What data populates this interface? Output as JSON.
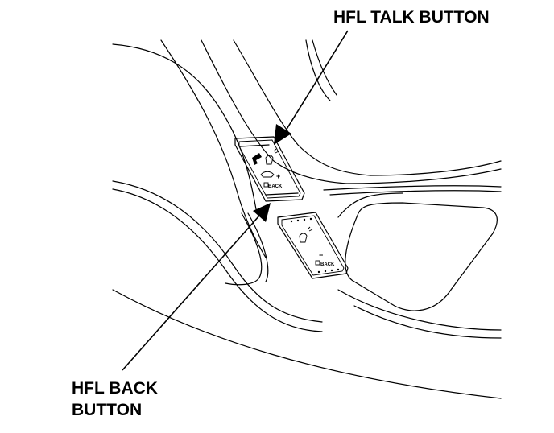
{
  "callouts": {
    "talk_button": "HFL TALK BUTTON",
    "back_button_line1": "HFL BACK",
    "back_button_line2": "BUTTON"
  },
  "button_glyphs": {
    "back_label": "BACK",
    "plus": "+",
    "minus": "−"
  },
  "icons": [
    "phone-icon",
    "voice-icon",
    "hang-up-icon",
    "back-icon"
  ]
}
